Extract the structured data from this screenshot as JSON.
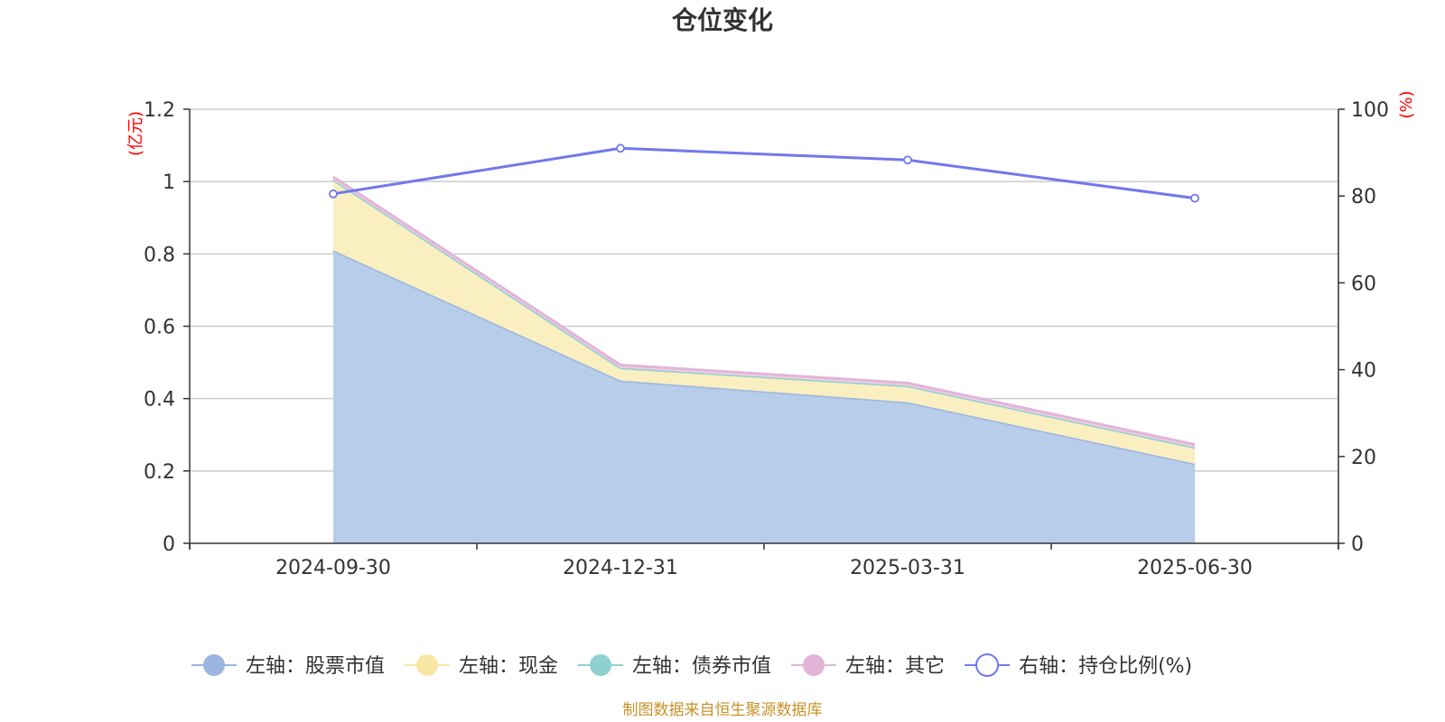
{
  "chart_data": {
    "type": "area",
    "title": "仓位变化",
    "categories": [
      "2024-09-30",
      "2024-12-31",
      "2025-03-31",
      "2025-06-30"
    ],
    "left_axis": {
      "unit": "(亿元)",
      "ylim": [
        0,
        1.2
      ],
      "ticks": [
        "0",
        "0.2",
        "0.4",
        "0.6",
        "0.8",
        "1",
        "1.2"
      ]
    },
    "right_axis": {
      "unit": "(%)",
      "ylim": [
        0,
        100
      ],
      "ticks": [
        "0",
        "20",
        "40",
        "60",
        "80",
        "100"
      ]
    },
    "series": [
      {
        "name": "左轴：股票市值",
        "axis": "left",
        "stacked": true,
        "color": "#9ab6e0",
        "fill": "#b8cdea",
        "values": [
          0.81,
          0.45,
          0.39,
          0.22
        ]
      },
      {
        "name": "左轴：现金",
        "axis": "left",
        "stacked": true,
        "color": "#f8e7a4",
        "fill": "#faefc1",
        "values": [
          0.195,
          0.035,
          0.045,
          0.045
        ]
      },
      {
        "name": "左轴：债券市值",
        "axis": "left",
        "stacked": true,
        "color": "#8fd0d0",
        "fill": "#b4e0e0",
        "values": [
          0,
          0,
          0,
          0
        ]
      },
      {
        "name": "左轴：其它",
        "axis": "left",
        "stacked": true,
        "color": "#e4b4d8",
        "fill": "#edd0e5",
        "values": [
          0.008,
          0.008,
          0.008,
          0.008
        ]
      },
      {
        "name": "右轴：持仓比例(%)",
        "axis": "right",
        "type": "line",
        "color": "#7278ec",
        "values": [
          80.5,
          91.0,
          88.3,
          79.5
        ]
      }
    ],
    "grid": true,
    "legend_position": "bottom"
  },
  "source_note": "制图数据来自恒生聚源数据库"
}
